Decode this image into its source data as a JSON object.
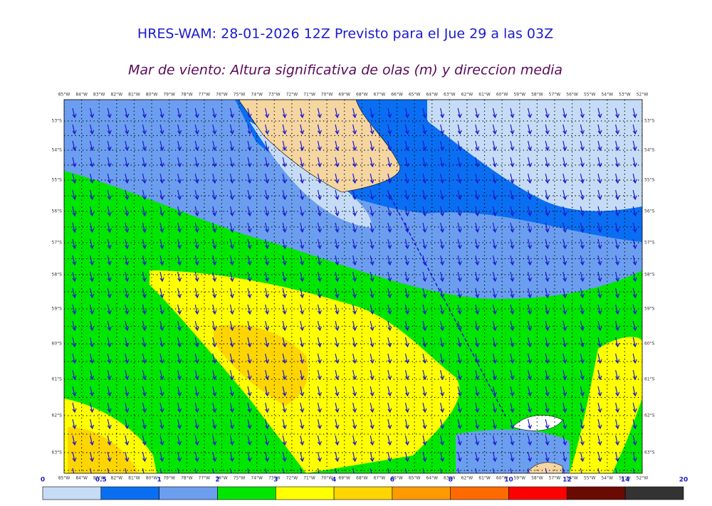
{
  "header": {
    "title": "HRES-WAM: 28-01-2026 12Z Previsto para el Jue 29 a las 03Z",
    "subtitle": "Mar de viento: Altura significativa de olas (m) y direccion media"
  },
  "map": {
    "lon_labels": [
      "85°W",
      "84°W",
      "83°W",
      "82°W",
      "81°W",
      "80°W",
      "79°W",
      "78°W",
      "77°W",
      "76°W",
      "75°W",
      "74°W",
      "73°W",
      "72°W",
      "71°W",
      "70°W",
      "69°W",
      "68°W",
      "67°W",
      "66°W",
      "65°W",
      "64°W",
      "63°W",
      "62°W",
      "61°W",
      "60°W",
      "59°W",
      "58°W",
      "57°W",
      "56°W",
      "55°W",
      "54°W",
      "53°W",
      "52°W"
    ],
    "lat_labels": [
      "53°S",
      "54°S",
      "55°S",
      "56°S",
      "57°S",
      "58°S",
      "59°S",
      "60°S",
      "61°S",
      "62°S",
      "63°S"
    ]
  },
  "colorbar": {
    "labels": [
      0,
      0.5,
      1,
      2,
      3,
      4,
      6,
      8,
      10,
      12,
      14,
      20
    ],
    "colors": [
      "#c6dcf6",
      "#0a6ef2",
      "#6c9ef0",
      "#00e600",
      "#ffff00",
      "#ffd500",
      "#ff9a00",
      "#ff6a00",
      "#ff0000",
      "#6a0a00",
      "#333333"
    ]
  }
}
